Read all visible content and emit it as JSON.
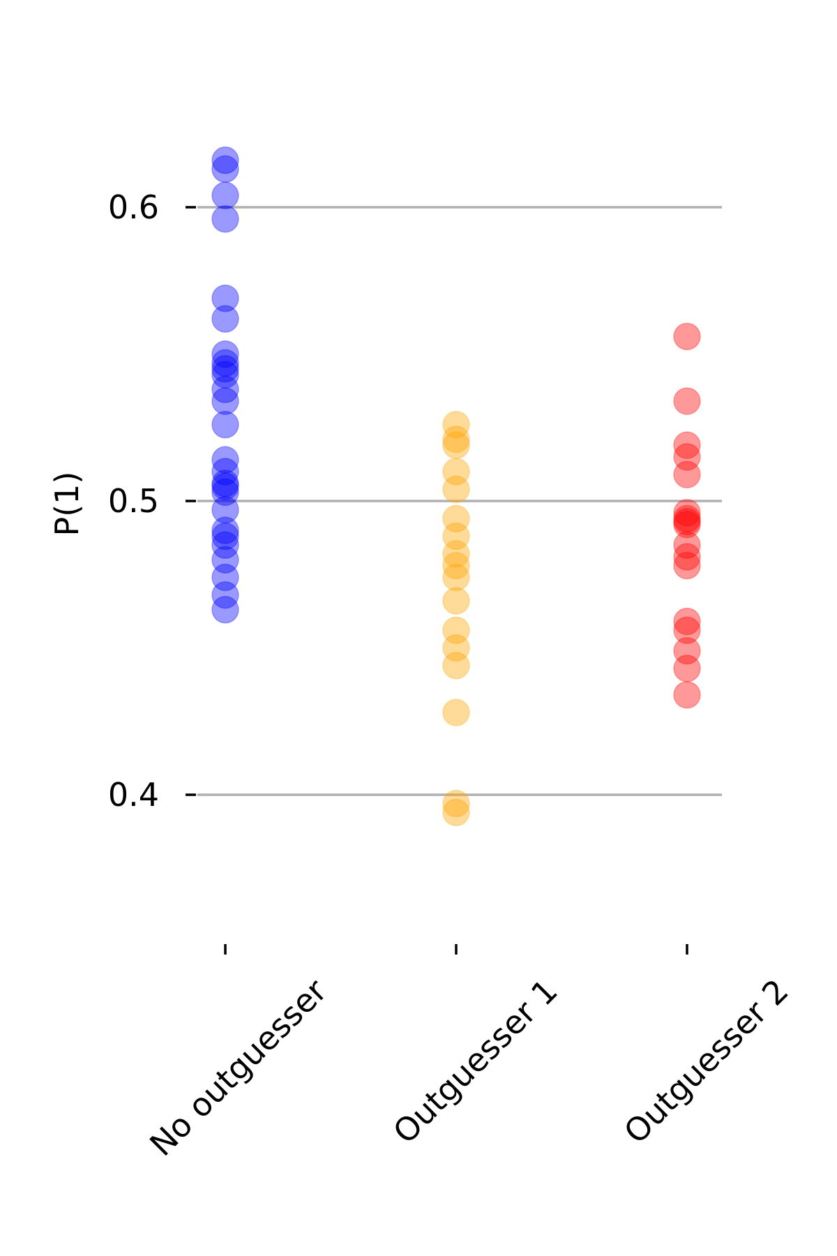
{
  "chart_data": {
    "type": "scatter",
    "title": "",
    "xlabel": "",
    "ylabel": "P(1)",
    "ylim": [
      0.365,
      0.635
    ],
    "yticks": [
      0.4,
      0.5,
      0.6
    ],
    "ytick_labels": [
      "0.4",
      "0.5",
      "0.6"
    ],
    "categories": [
      "No outguesser",
      "Outguesser 1",
      "Outguesser 2"
    ],
    "grid": "horizontal at y ticks",
    "legend": "none",
    "series": [
      {
        "category": "No outguesser",
        "color": "#0000ff",
        "values": [
          0.616,
          0.613,
          0.604,
          0.596,
          0.569,
          0.562,
          0.55,
          0.547,
          0.545,
          0.543,
          0.538,
          0.534,
          0.526,
          0.514,
          0.51,
          0.506,
          0.505,
          0.503,
          0.497,
          0.49,
          0.488,
          0.485,
          0.48,
          0.474,
          0.468,
          0.463
        ]
      },
      {
        "category": "Outguesser 1",
        "color": "#ffa500",
        "values": [
          0.526,
          0.521,
          0.519,
          0.51,
          0.504,
          0.494,
          0.488,
          0.482,
          0.478,
          0.474,
          0.466,
          0.456,
          0.45,
          0.444,
          0.428,
          0.397,
          0.394
        ]
      },
      {
        "category": "Outguesser 2",
        "color": "#ff0000",
        "values": [
          0.556,
          0.534,
          0.519,
          0.515,
          0.509,
          0.496,
          0.494,
          0.493,
          0.492,
          0.485,
          0.481,
          0.478,
          0.459,
          0.456,
          0.449,
          0.443,
          0.434
        ]
      }
    ]
  }
}
